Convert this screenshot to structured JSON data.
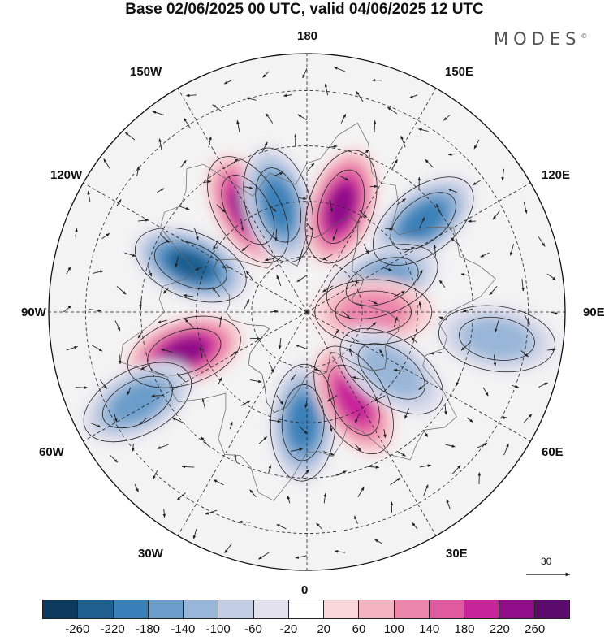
{
  "header": {
    "title": "Base 02/06/2025 00 UTC, valid 04/06/2025 12 UTC",
    "brand": "MODES",
    "brand_mark": "©"
  },
  "map": {
    "projection": "north-polar-stereographic",
    "longitude_labels": {
      "top": "180",
      "bottom": "0",
      "left": "90W",
      "right": "90E",
      "upper_left_1": "150W",
      "upper_left_2": "120W",
      "lower_left_1": "60W",
      "lower_left_2": "30W",
      "upper_right_1": "150E",
      "upper_right_2": "120E",
      "lower_right_1": "60E",
      "lower_right_2": "30E"
    },
    "reference_vector": "30"
  },
  "colorbar": {
    "colors": [
      "#0b3a5c",
      "#1f5f8f",
      "#3a80b8",
      "#6a9dca",
      "#98b6d8",
      "#c3cde3",
      "#e3e1ee",
      "#ffffff",
      "#f9d6d9",
      "#f3b3bf",
      "#ec86ab",
      "#e05aa0",
      "#c7239a",
      "#8f0d89",
      "#5c0a6d"
    ],
    "tick_labels": [
      "-260",
      "-220",
      "-180",
      "-140",
      "-100",
      "-60",
      "-20",
      "20",
      "60",
      "100",
      "140",
      "180",
      "220",
      "260"
    ]
  },
  "anomalies": [
    {
      "name": "pos-150w",
      "lon": -150,
      "lat": 58,
      "value": 240
    },
    {
      "name": "neg-165w",
      "lon": -165,
      "lat": 60,
      "value": -200
    },
    {
      "name": "pos-160e",
      "lon": 162,
      "lat": 60,
      "value": 250
    },
    {
      "name": "neg-140e",
      "lon": 128,
      "lat": 50,
      "value": -180
    },
    {
      "name": "neg-110w",
      "lon": -112,
      "lat": 56,
      "value": -240
    },
    {
      "name": "pos-75w",
      "lon": -72,
      "lat": 55,
      "value": 230
    },
    {
      "name": "neg-60w",
      "lon": -62,
      "lat": 38,
      "value": -140
    },
    {
      "name": "neg-5e",
      "lon": -2,
      "lat": 60,
      "value": -200
    },
    {
      "name": "pos-30e",
      "lon": 28,
      "lat": 63,
      "value": 180
    },
    {
      "name": "neg-100e",
      "lon": 112,
      "lat": 68,
      "value": -160
    },
    {
      "name": "pos-90e",
      "lon": 90,
      "lat": 72,
      "value": 100
    },
    {
      "name": "neg-85e",
      "lon": 82,
      "lat": 38,
      "value": -120
    },
    {
      "name": "neg-55e",
      "lon": 55,
      "lat": 62,
      "value": -120
    }
  ]
}
